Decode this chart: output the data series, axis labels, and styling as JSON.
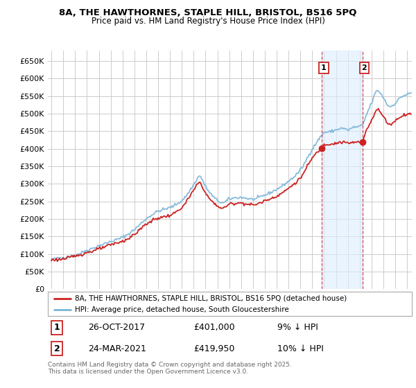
{
  "title1": "8A, THE HAWTHORNES, STAPLE HILL, BRISTOL, BS16 5PQ",
  "title2": "Price paid vs. HM Land Registry's House Price Index (HPI)",
  "ylim": [
    0,
    680000
  ],
  "ytick_vals": [
    0,
    50000,
    100000,
    150000,
    200000,
    250000,
    300000,
    350000,
    400000,
    450000,
    500000,
    550000,
    600000,
    650000
  ],
  "ytick_labels": [
    "£0",
    "£50K",
    "£100K",
    "£150K",
    "£200K",
    "£250K",
    "£300K",
    "£350K",
    "£400K",
    "£450K",
    "£500K",
    "£550K",
    "£600K",
    "£650K"
  ],
  "sale1_date": "26-OCT-2017",
  "sale1_price": 401000,
  "sale1_label": "£401,000",
  "sale1_pct": "9% ↓ HPI",
  "sale2_date": "24-MAR-2021",
  "sale2_price": 419950,
  "sale2_label": "£419,950",
  "sale2_pct": "10% ↓ HPI",
  "sale1_x": 2017.82,
  "sale2_x": 2021.23,
  "legend_label1": "8A, THE HAWTHORNES, STAPLE HILL, BRISTOL, BS16 5PQ (detached house)",
  "legend_label2": "HPI: Average price, detached house, South Gloucestershire",
  "footer": "Contains HM Land Registry data © Crown copyright and database right 2025.\nThis data is licensed under the Open Government Licence v3.0.",
  "hpi_color": "#7ab4d8",
  "price_color": "#cc2222",
  "shade_color": "#ddeeff",
  "bg_color": "#ffffff",
  "grid_color": "#cccccc",
  "xmin": 1995.0,
  "xmax": 2025.3
}
